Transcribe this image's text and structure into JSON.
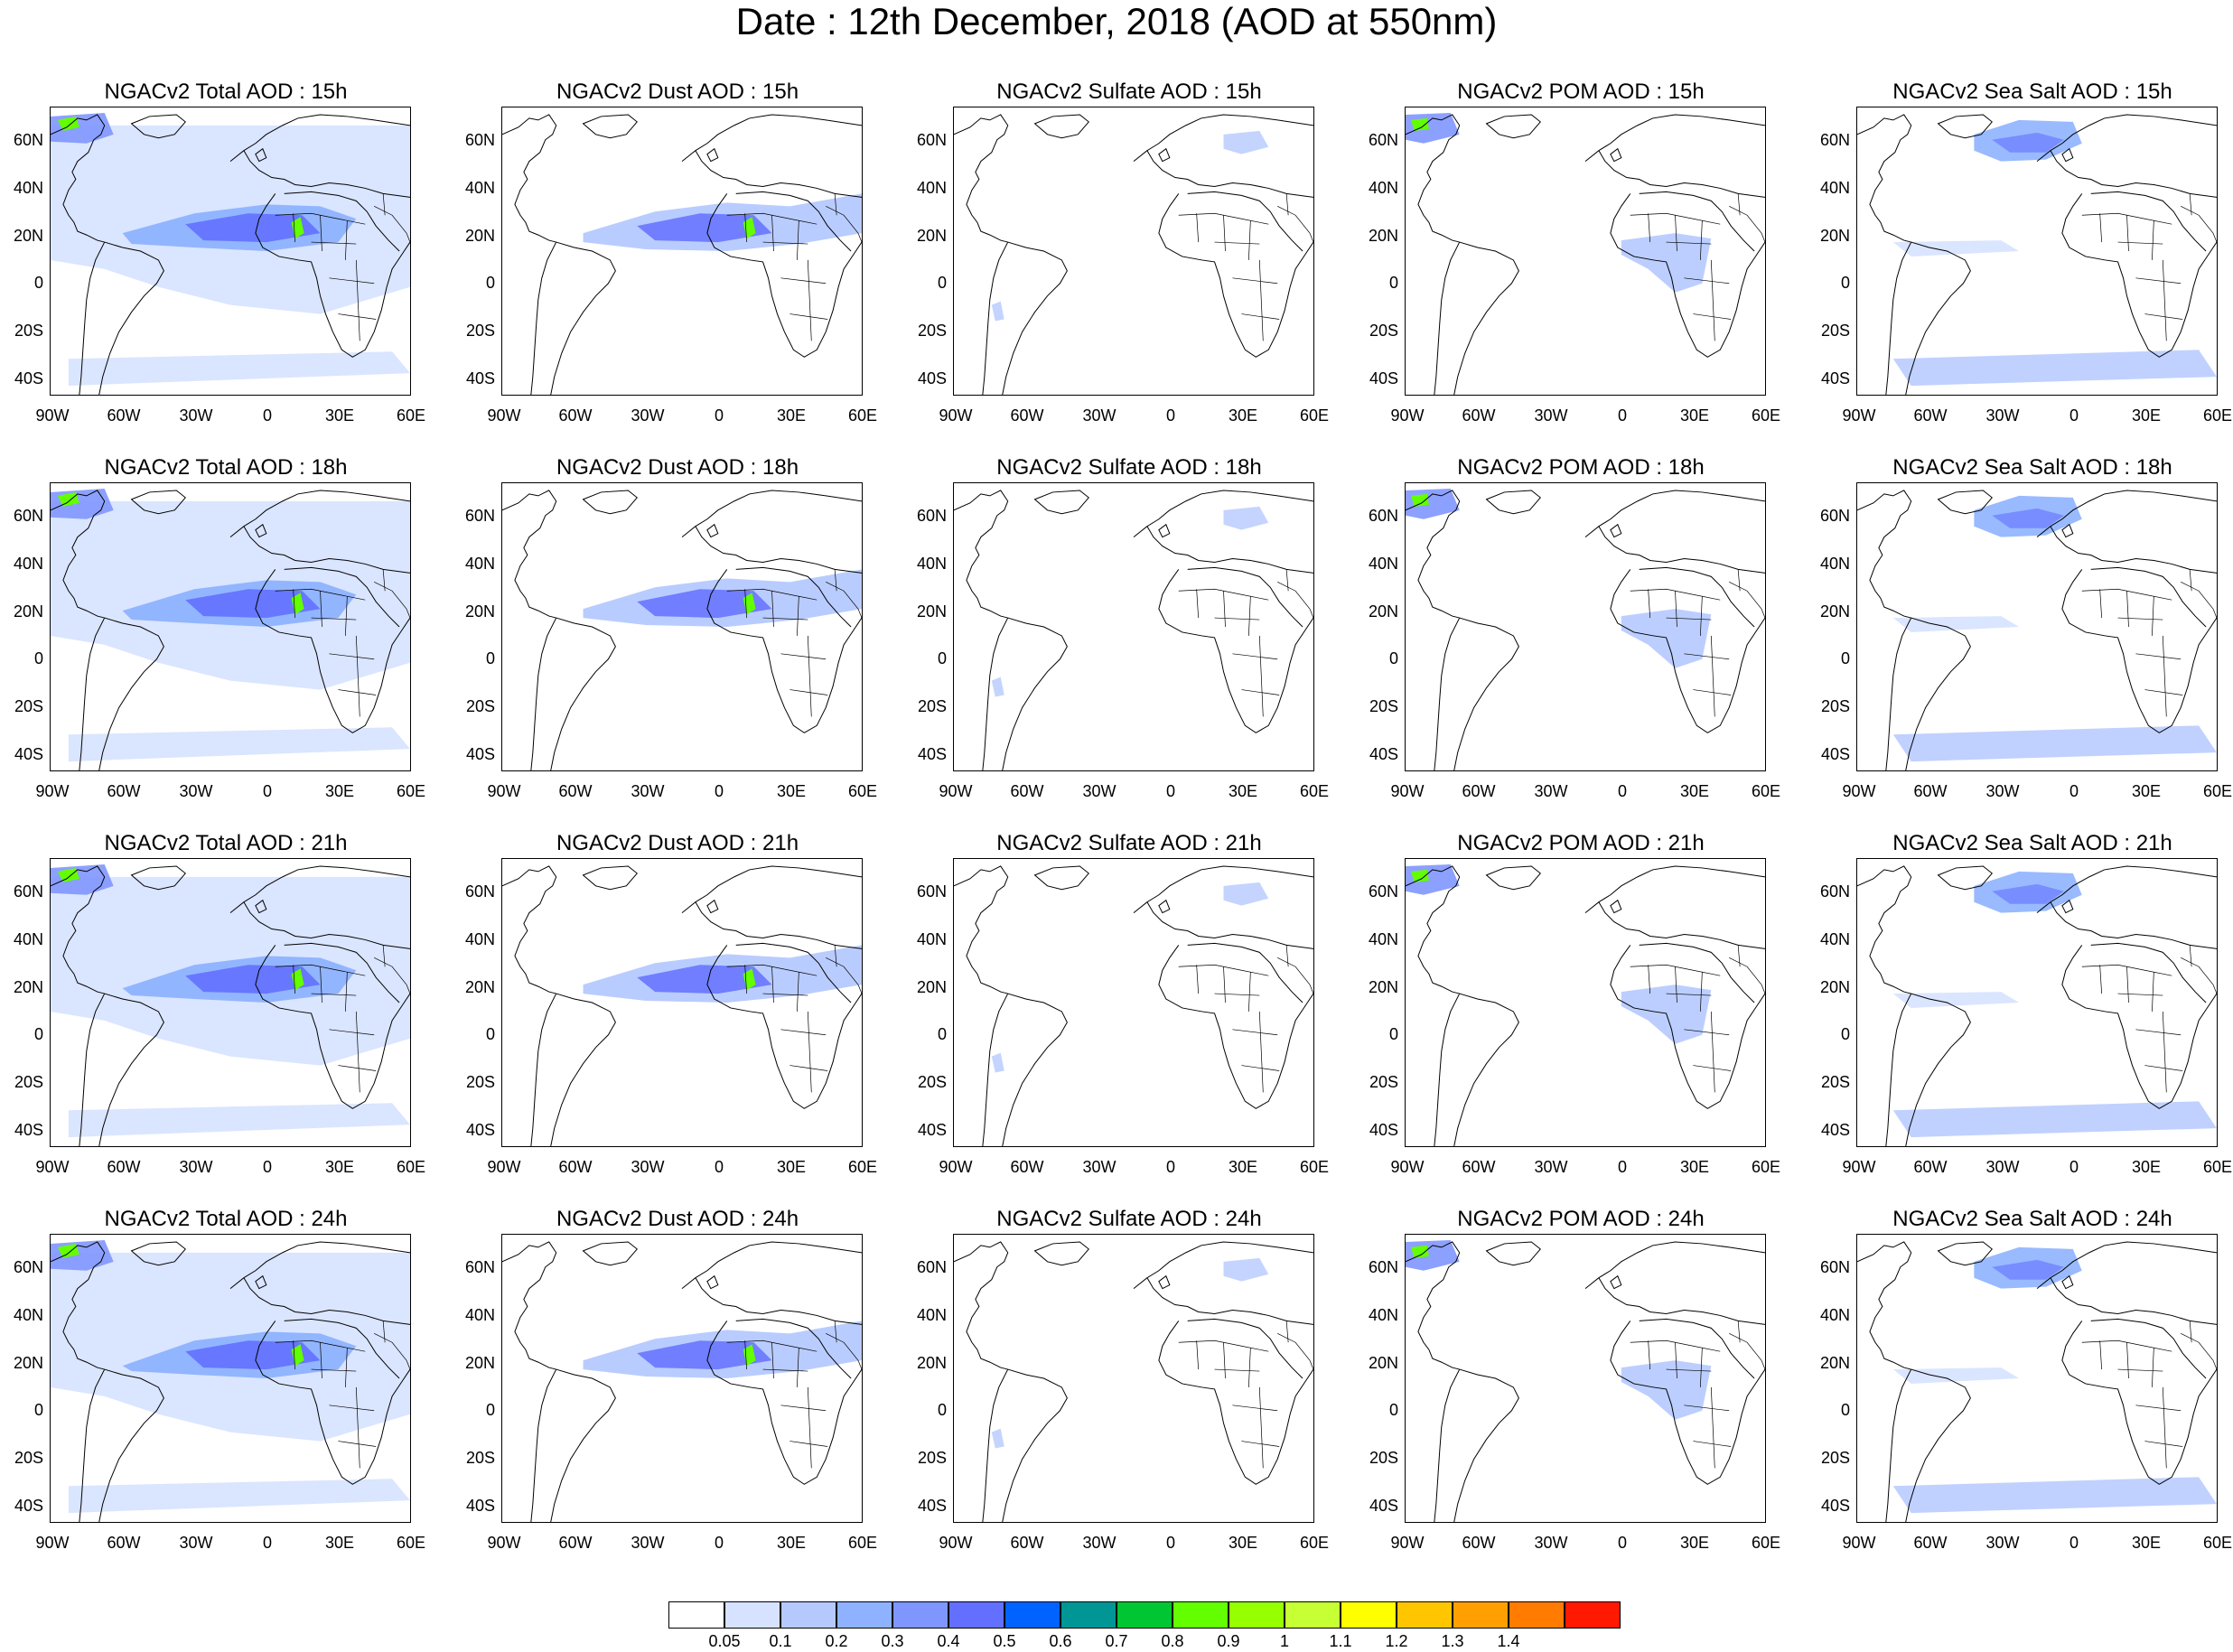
{
  "title": "Date : 12th December, 2018 (AOD at 550nm)",
  "columns": [
    "Total",
    "Dust",
    "Sulfate",
    "POM",
    "Sea Salt"
  ],
  "panel_titles": [
    [
      "NGACv2 Total AOD : 15h",
      "NGACv2 Dust AOD : 15h",
      "NGACv2 Sulfate AOD : 15h",
      "NGACv2 POM AOD : 15h",
      "NGACv2 Sea Salt AOD : 15h"
    ],
    [
      "NGACv2 Total AOD : 18h",
      "NGACv2 Dust AOD : 18h",
      "NGACv2 Sulfate AOD : 18h",
      "NGACv2 POM AOD : 18h",
      "NGACv2 Sea Salt AOD : 18h"
    ],
    [
      "NGACv2 Total AOD : 21h",
      "NGACv2 Dust AOD : 21h",
      "NGACv2 Sulfate AOD : 21h",
      "NGACv2 POM AOD : 21h",
      "NGACv2 Sea Salt AOD : 21h"
    ],
    [
      "NGACv2 Total AOD : 24h",
      "NGACv2 Dust AOD : 24h",
      "NGACv2 Sulfate AOD : 24h",
      "NGACv2 POM AOD : 24h",
      "NGACv2 Sea Salt  AOD : 24h"
    ]
  ],
  "lat_labels": [
    "60N",
    "40N",
    "20N",
    "0",
    "20S",
    "40S"
  ],
  "lon_labels": [
    "90W",
    "60W",
    "30W",
    "0",
    "30E",
    "60E"
  ],
  "colorbar": {
    "colors": [
      "#ffffff",
      "#d6e2ff",
      "#b5c9ff",
      "#8eb2ff",
      "#7f96ff",
      "#6370ff",
      "#0063ff",
      "#009696",
      "#00c633",
      "#63ff00",
      "#96ff00",
      "#c6ff33",
      "#ffff00",
      "#ffc600",
      "#ffa000",
      "#ff7c00",
      "#ff1900"
    ],
    "labels": [
      "0.05",
      "0.1",
      "0.2",
      "0.3",
      "0.4",
      "0.5",
      "0.6",
      "0.7",
      "0.8",
      "0.9",
      "1",
      "1.1",
      "1.2",
      "1.3",
      "1.4"
    ]
  }
}
